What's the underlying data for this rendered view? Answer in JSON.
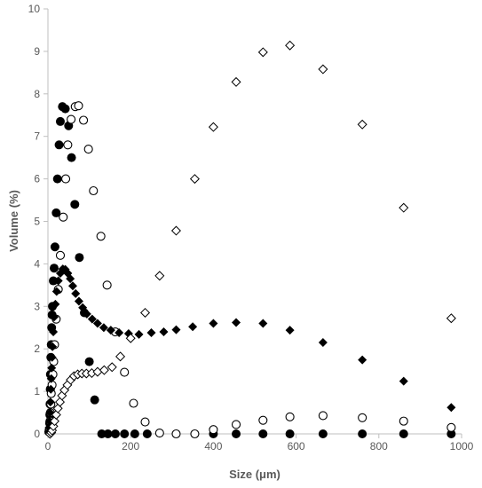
{
  "chart_data": {
    "type": "scatter",
    "title": "",
    "xlabel": "Size (μm)",
    "ylabel": "Volume (%)",
    "xlim": [
      0,
      1000
    ],
    "ylim": [
      0,
      10
    ],
    "x_ticks": [
      0,
      200,
      400,
      600,
      800,
      1000
    ],
    "y_ticks": [
      0,
      1,
      2,
      3,
      4,
      5,
      6,
      7,
      8,
      9,
      10
    ],
    "grid": false,
    "legend": "none",
    "colors": {
      "axis": "#bfbfbf",
      "marker": "#000000",
      "text": "#595959"
    },
    "series": [
      {
        "marker": "filled-circle",
        "points": [
          [
            2,
            0.05
          ],
          [
            3,
            0.1
          ],
          [
            4,
            0.25
          ],
          [
            4.5,
            0.45
          ],
          [
            5,
            0.7
          ],
          [
            5.5,
            1.05
          ],
          [
            6,
            1.4
          ],
          [
            7,
            1.8
          ],
          [
            8,
            2.1
          ],
          [
            9,
            2.5
          ],
          [
            10,
            2.8
          ],
          [
            11,
            3.0
          ],
          [
            13,
            3.6
          ],
          [
            15,
            3.9
          ],
          [
            17,
            4.4
          ],
          [
            20,
            5.2
          ],
          [
            23,
            6.0
          ],
          [
            27,
            6.8
          ],
          [
            30,
            7.35
          ],
          [
            35,
            7.7
          ],
          [
            42,
            7.65
          ],
          [
            50,
            7.25
          ],
          [
            57,
            6.5
          ],
          [
            65,
            5.4
          ],
          [
            76,
            4.15
          ],
          [
            88,
            2.85
          ],
          [
            100,
            1.7
          ],
          [
            113,
            0.8
          ],
          [
            130,
            0.0
          ],
          [
            145,
            0.0
          ],
          [
            163,
            0.0
          ],
          [
            185,
            0.0
          ],
          [
            210,
            0.0
          ],
          [
            240,
            0.0
          ],
          [
            400,
            0.0
          ],
          [
            455,
            0.0
          ],
          [
            520,
            0.0
          ],
          [
            585,
            0.0
          ],
          [
            665,
            0.0
          ],
          [
            760,
            0.0
          ],
          [
            860,
            0.0
          ],
          [
            975,
            0.0
          ]
        ]
      },
      {
        "marker": "open-circle",
        "points": [
          [
            4,
            0.1
          ],
          [
            5,
            0.3
          ],
          [
            6,
            0.5
          ],
          [
            7,
            0.7
          ],
          [
            8,
            0.95
          ],
          [
            10,
            1.15
          ],
          [
            12,
            1.4
          ],
          [
            14,
            1.7
          ],
          [
            16,
            2.1
          ],
          [
            20,
            2.7
          ],
          [
            25,
            3.4
          ],
          [
            30,
            4.2
          ],
          [
            37,
            5.1
          ],
          [
            43,
            6.0
          ],
          [
            48,
            6.8
          ],
          [
            56,
            7.4
          ],
          [
            66,
            7.7
          ],
          [
            74,
            7.72
          ],
          [
            86,
            7.38
          ],
          [
            98,
            6.7
          ],
          [
            110,
            5.72
          ],
          [
            128,
            4.65
          ],
          [
            143,
            3.5
          ],
          [
            163,
            2.4
          ],
          [
            185,
            1.45
          ],
          [
            207,
            0.72
          ],
          [
            235,
            0.28
          ],
          [
            270,
            0.02
          ],
          [
            310,
            0.0
          ],
          [
            355,
            0.0
          ],
          [
            400,
            0.1
          ],
          [
            455,
            0.22
          ],
          [
            520,
            0.32
          ],
          [
            585,
            0.4
          ],
          [
            665,
            0.43
          ],
          [
            760,
            0.38
          ],
          [
            860,
            0.3
          ],
          [
            975,
            0.15
          ]
        ]
      },
      {
        "marker": "filled-diamond",
        "points": [
          [
            2,
            0.05
          ],
          [
            3,
            0.15
          ],
          [
            4,
            0.3
          ],
          [
            5,
            0.5
          ],
          [
            6,
            0.75
          ],
          [
            7,
            1.05
          ],
          [
            8,
            1.3
          ],
          [
            9,
            1.55
          ],
          [
            10,
            1.8
          ],
          [
            11,
            2.05
          ],
          [
            13,
            2.4
          ],
          [
            15,
            2.75
          ],
          [
            18,
            3.05
          ],
          [
            21,
            3.35
          ],
          [
            25,
            3.6
          ],
          [
            30,
            3.78
          ],
          [
            36,
            3.88
          ],
          [
            42,
            3.87
          ],
          [
            48,
            3.78
          ],
          [
            54,
            3.65
          ],
          [
            60,
            3.48
          ],
          [
            67,
            3.3
          ],
          [
            75,
            3.12
          ],
          [
            84,
            2.97
          ],
          [
            94,
            2.82
          ],
          [
            107,
            2.7
          ],
          [
            120,
            2.6
          ],
          [
            135,
            2.5
          ],
          [
            152,
            2.44
          ],
          [
            172,
            2.38
          ],
          [
            195,
            2.36
          ],
          [
            220,
            2.34
          ],
          [
            250,
            2.38
          ],
          [
            280,
            2.4
          ],
          [
            310,
            2.45
          ],
          [
            350,
            2.52
          ],
          [
            400,
            2.6
          ],
          [
            455,
            2.62
          ],
          [
            520,
            2.6
          ],
          [
            585,
            2.44
          ],
          [
            665,
            2.15
          ],
          [
            760,
            1.74
          ],
          [
            860,
            1.24
          ],
          [
            975,
            0.62
          ]
        ]
      },
      {
        "marker": "open-diamond",
        "points": [
          [
            5,
            0.0
          ],
          [
            8,
            0.03
          ],
          [
            10,
            0.08
          ],
          [
            13,
            0.18
          ],
          [
            16,
            0.3
          ],
          [
            20,
            0.45
          ],
          [
            24,
            0.6
          ],
          [
            29,
            0.75
          ],
          [
            34,
            0.9
          ],
          [
            40,
            1.03
          ],
          [
            47,
            1.15
          ],
          [
            55,
            1.27
          ],
          [
            63,
            1.36
          ],
          [
            72,
            1.4
          ],
          [
            82,
            1.42
          ],
          [
            93,
            1.42
          ],
          [
            106,
            1.43
          ],
          [
            120,
            1.46
          ],
          [
            136,
            1.5
          ],
          [
            155,
            1.57
          ],
          [
            175,
            1.82
          ],
          [
            200,
            2.25
          ],
          [
            235,
            2.85
          ],
          [
            270,
            3.72
          ],
          [
            310,
            4.78
          ],
          [
            355,
            6.0
          ],
          [
            400,
            7.22
          ],
          [
            455,
            8.28
          ],
          [
            520,
            8.98
          ],
          [
            585,
            9.14
          ],
          [
            665,
            8.58
          ],
          [
            760,
            7.28
          ],
          [
            860,
            5.32
          ],
          [
            975,
            2.72
          ]
        ]
      }
    ]
  }
}
